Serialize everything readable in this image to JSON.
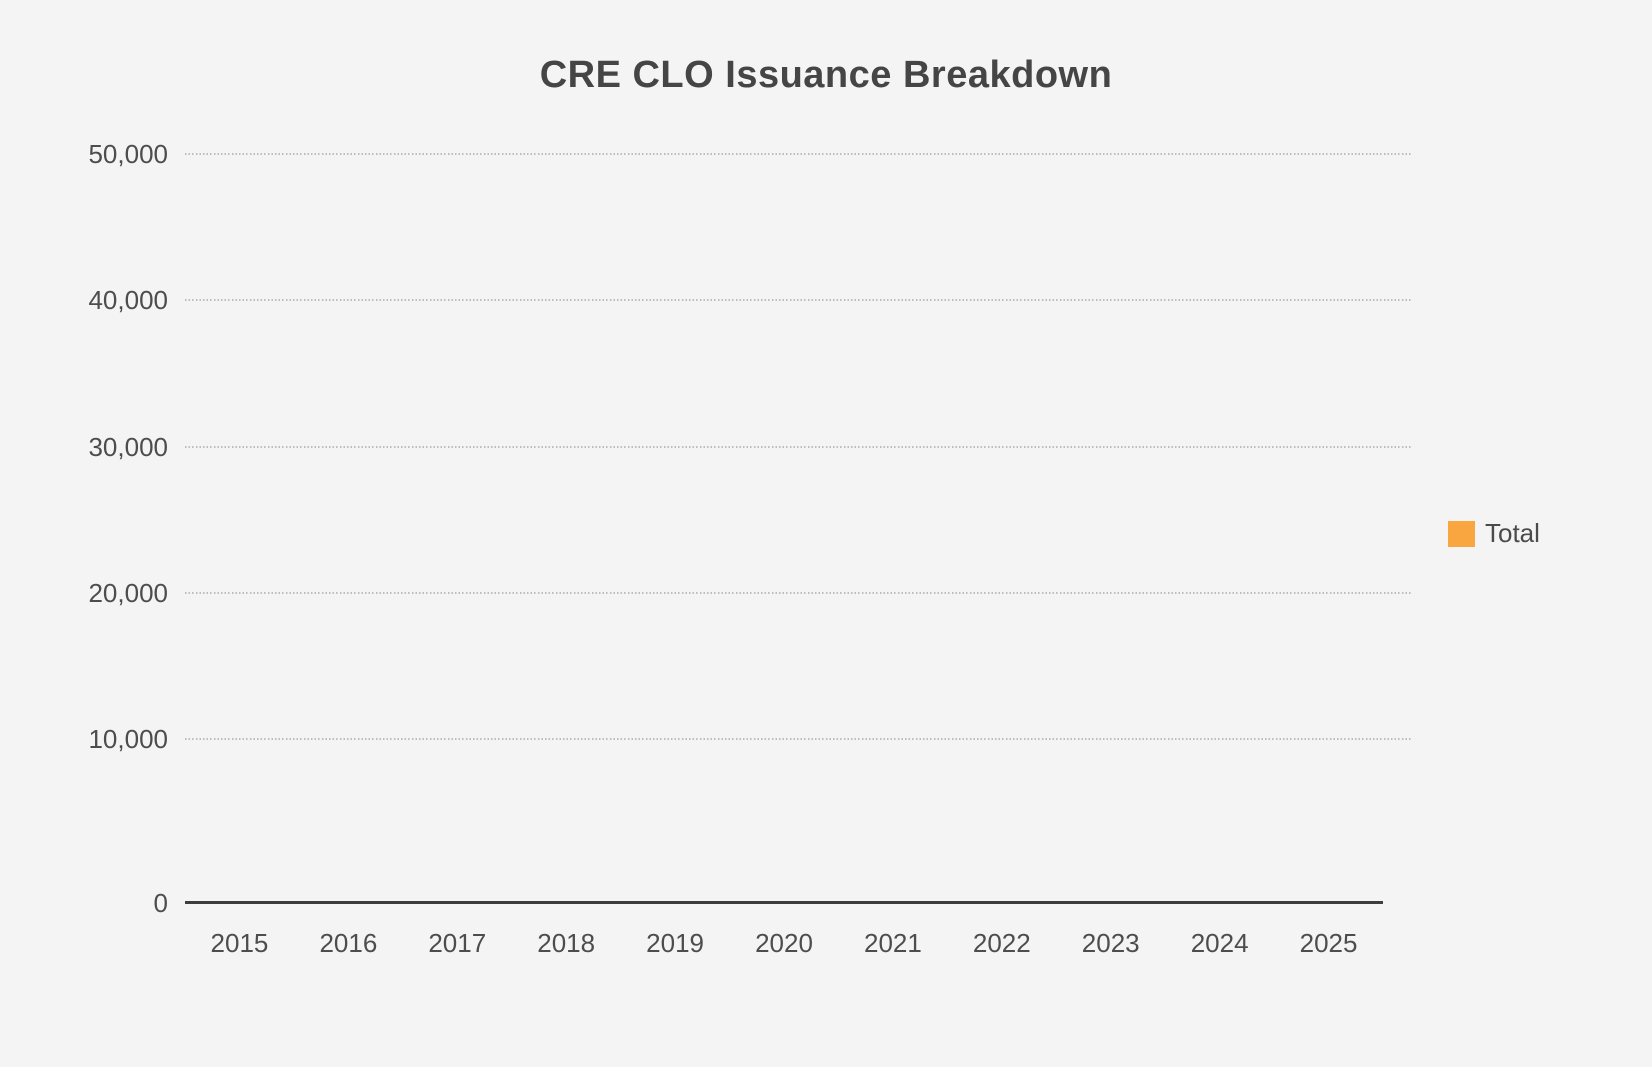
{
  "chart_data": {
    "type": "bar",
    "title": "CRE CLO Issuance Breakdown",
    "categories": [
      "2015",
      "2016",
      "2017",
      "2018",
      "2019",
      "2020",
      "2021",
      "2022",
      "2023",
      "2024",
      "2025"
    ],
    "series": [
      {
        "name": "Total",
        "color": "#F9A640",
        "values": [
          0,
          0,
          0,
          0,
          0,
          0,
          0,
          0,
          0,
          0,
          0
        ]
      }
    ],
    "xlabel": "",
    "ylabel": "",
    "ylim": [
      0,
      50000
    ],
    "yticks": [
      0,
      10000,
      20000,
      30000,
      40000,
      50000
    ],
    "ytick_labels": [
      "0",
      "10,000",
      "20,000",
      "30,000",
      "40,000",
      "50,000"
    ],
    "grid": "horizontal-dotted",
    "legend_position": "right"
  },
  "legend": {
    "items": [
      {
        "label": "Total",
        "color": "#F9A640"
      }
    ]
  },
  "colors": {
    "background": "#f4f4f5",
    "title_text": "#454545",
    "tick_text": "#4d4d4d",
    "axis_line": "#3d3d3d",
    "gridline": "#bcbcbc",
    "series_total": "#F9A640"
  }
}
